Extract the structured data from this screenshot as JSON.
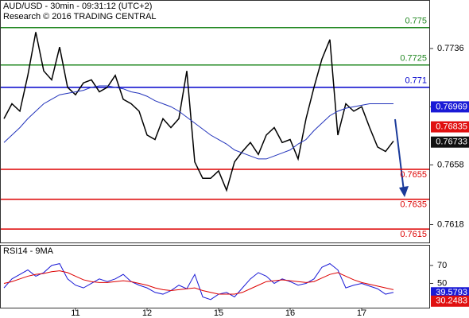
{
  "chart_data": [
    {
      "type": "line",
      "title": "AUD/USD - 30min - 09:31:12 (UTC+2)",
      "subtitle": "Research © 2016 TRADING CENTRAL",
      "categories": [
        null,
        null,
        null,
        null,
        null,
        null,
        null,
        null,
        null,
        "11",
        null,
        null,
        null,
        null,
        null,
        null,
        null,
        null,
        "12",
        null,
        null,
        null,
        null,
        null,
        null,
        null,
        null,
        "15",
        null,
        null,
        null,
        null,
        null,
        null,
        null,
        null,
        "16",
        null,
        null,
        null,
        null,
        null,
        null,
        null,
        null,
        "17",
        null,
        null,
        null,
        null
      ],
      "series": [
        {
          "color": "#000000",
          "values": [
            0.7689,
            0.7699,
            0.7694,
            0.7718,
            0.7747,
            0.7721,
            0.7715,
            0.7737,
            0.771,
            0.7705,
            0.7713,
            0.7715,
            0.7707,
            0.771,
            0.7718,
            0.7702,
            0.7699,
            0.7694,
            0.7678,
            0.7675,
            0.7689,
            0.7683,
            0.7689,
            0.7721,
            0.766,
            0.7649,
            0.7649,
            0.7654,
            0.7641,
            0.766,
            0.7667,
            0.7673,
            0.7665,
            0.7678,
            0.7683,
            0.7673,
            0.7675,
            0.7662,
            0.7689,
            0.771,
            0.7729,
            0.7742,
            0.7678,
            0.7699,
            0.7694,
            0.7697,
            0.7683,
            0.767,
            0.7667,
            0.7674
          ]
        },
        {
          "color": "#2233bb",
          "values": [
            0.7673,
            0.7678,
            0.7683,
            0.7689,
            0.7694,
            0.7699,
            0.7702,
            0.7705,
            0.7706,
            0.7707,
            0.7708,
            0.771,
            0.7711,
            0.7711,
            0.771,
            0.7709,
            0.7707,
            0.7706,
            0.7704,
            0.7701,
            0.7699,
            0.7697,
            0.7694,
            0.769,
            0.7686,
            0.7682,
            0.7678,
            0.7675,
            0.7672,
            0.7668,
            0.7666,
            0.7664,
            0.7662,
            0.7662,
            0.7664,
            0.7666,
            0.7668,
            0.7672,
            0.7675,
            0.7681,
            0.7686,
            0.7691,
            0.7694,
            0.7696,
            0.7697,
            0.7698,
            0.7699,
            0.7699,
            0.7699,
            0.7699
          ]
        }
      ],
      "levels": [
        {
          "value": 0.775,
          "color": "#228822"
        },
        {
          "value": 0.7725,
          "color": "#228822"
        },
        {
          "value": 0.771,
          "color": "#0000cc"
        },
        {
          "value": 0.7655,
          "color": "#dd0000"
        },
        {
          "value": 0.7635,
          "color": "#dd0000"
        },
        {
          "value": 0.7615,
          "color": "#dd0000"
        }
      ],
      "markers": [
        {
          "value": 0.76969,
          "color": "#1a1ad6"
        },
        {
          "value": 0.76835,
          "color": "#e01010"
        },
        {
          "value": 0.76733,
          "color": "#111111"
        }
      ],
      "ylim": [
        0.7606,
        0.7768
      ],
      "yticks": [
        0.7736,
        0.7697,
        0.7658,
        0.7618
      ]
    },
    {
      "type": "line",
      "title": "RSI14 - 9MA",
      "series": [
        {
          "color": "#1a1ad6",
          "values": [
            45,
            55,
            60,
            65,
            58,
            62,
            70,
            72,
            55,
            48,
            45,
            50,
            55,
            52,
            55,
            60,
            52,
            48,
            45,
            40,
            38,
            42,
            48,
            44,
            60,
            35,
            32,
            38,
            40,
            35,
            45,
            55,
            62,
            58,
            50,
            55,
            52,
            48,
            50,
            55,
            68,
            72,
            65,
            45,
            48,
            50,
            47,
            44,
            38,
            40
          ]
        },
        {
          "color": "#dd0000",
          "values": [
            50,
            52,
            55,
            58,
            60,
            61,
            63,
            64,
            62,
            58,
            54,
            52,
            51,
            51,
            52,
            53,
            52,
            50,
            48,
            45,
            43,
            42,
            43,
            44,
            45,
            42,
            40,
            38,
            38,
            38,
            40,
            44,
            48,
            52,
            53,
            54,
            53,
            52,
            51,
            52,
            56,
            60,
            62,
            58,
            54,
            51,
            49,
            47,
            45,
            43
          ]
        }
      ],
      "markers": [
        {
          "value": 39.5793,
          "color": "#1a1ad6"
        },
        {
          "value": 30.2483,
          "color": "#e01010"
        }
      ],
      "ylim": [
        23,
        92
      ],
      "yticks": [
        70,
        50
      ]
    }
  ]
}
